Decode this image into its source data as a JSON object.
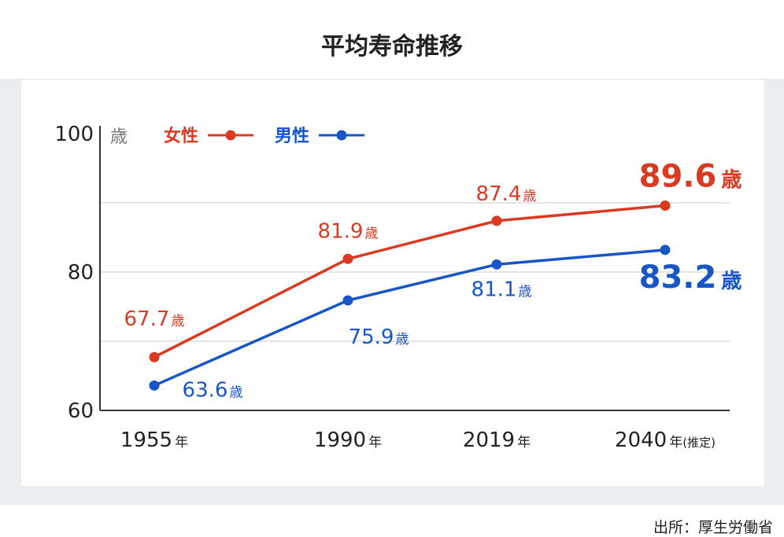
{
  "title": "平均寿命推移",
  "source": "出所：厚生労働省",
  "colors": {
    "female": "#d83a22",
    "male": "#1856c8",
    "axis": "#333333",
    "grid": "#d4d4d4",
    "text": "#222222"
  },
  "chart_data": {
    "type": "line",
    "ylabel": "歳",
    "ylim": [
      60,
      100
    ],
    "yticks": [
      "100",
      "80",
      "60"
    ],
    "ytick_values": [
      100,
      80,
      60
    ],
    "grid": true,
    "legend_position": "top-left",
    "categories": [
      {
        "value": "1955",
        "unit": "年",
        "note": ""
      },
      {
        "value": "1990",
        "unit": "年",
        "note": ""
      },
      {
        "value": "2019",
        "unit": "年",
        "note": ""
      },
      {
        "value": "2040",
        "unit": "年",
        "note": "(推定)"
      }
    ],
    "series": [
      {
        "name": "女性",
        "values": [
          67.7,
          81.9,
          87.4,
          89.6
        ],
        "labels": [
          "67.7",
          "81.9",
          "87.4",
          "89.6"
        ],
        "unit": "歳"
      },
      {
        "name": "男性",
        "values": [
          63.6,
          75.9,
          81.1,
          83.2
        ],
        "labels": [
          "63.6",
          "75.9",
          "81.1",
          "83.2"
        ],
        "unit": "歳"
      }
    ]
  }
}
